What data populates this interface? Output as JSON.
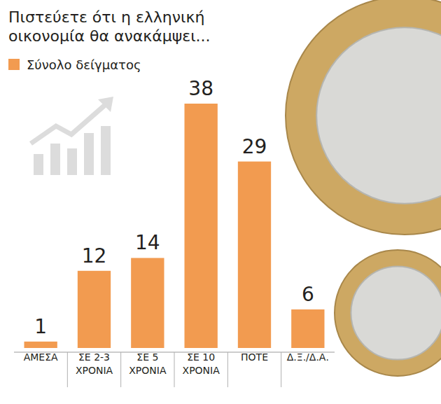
{
  "chart_data": {
    "type": "bar",
    "title": "Πιστεύετε ότι η ελληνική οικονομία θα ανακάμψει...",
    "categories": [
      "ΑΜΕΣΑ",
      "ΣΕ 2-3 ΧΡΟΝΙΑ",
      "ΣΕ 5 ΧΡΟΝΙΑ",
      "ΣΕ 10 ΧΡΟΝΙΑ",
      "ΠΟΤΕ",
      "Δ.Ξ./Δ.Α."
    ],
    "series": [
      {
        "name": "Σύνολο δείγματος",
        "color": "#f29b50",
        "values": [
          1,
          12,
          14,
          38,
          29,
          6
        ]
      }
    ],
    "data_labels": true,
    "tick_labels": "x",
    "legend": "top-left"
  }
}
